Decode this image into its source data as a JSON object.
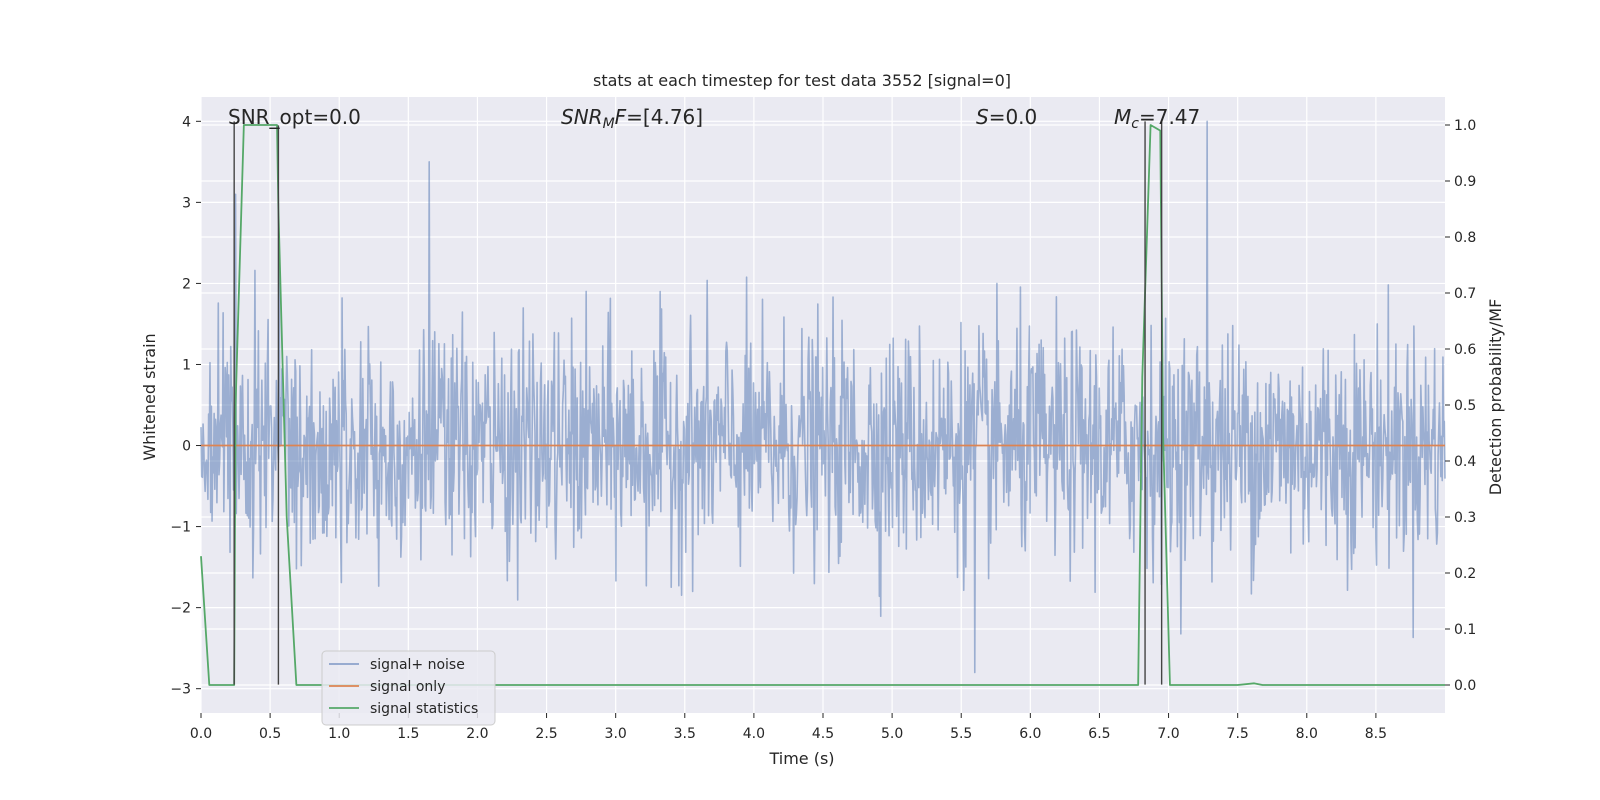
{
  "chart_data": {
    "type": "line",
    "title": "stats at each timestep for test data 3552 [signal=0]",
    "xlabel": "Time (s)",
    "ylabel": "Whitened strain",
    "ylabel_right": "Detection probability/MF",
    "xlim": [
      0.0,
      9.0
    ],
    "ylim": [
      -3.3,
      4.3
    ],
    "ylim_right": [
      -0.05,
      1.05
    ],
    "xticks": [
      "0.0",
      "0.5",
      "1.0",
      "1.5",
      "2.0",
      "2.5",
      "3.0",
      "3.5",
      "4.0",
      "4.5",
      "5.0",
      "5.5",
      "6.0",
      "6.5",
      "7.0",
      "7.5",
      "8.0",
      "8.5"
    ],
    "xtick_values": [
      0.0,
      0.5,
      1.0,
      1.5,
      2.0,
      2.5,
      3.0,
      3.5,
      4.0,
      4.5,
      5.0,
      5.5,
      6.0,
      6.5,
      7.0,
      7.5,
      8.0,
      8.5
    ],
    "yticks": [
      "−3",
      "−2",
      "−1",
      "0",
      "1",
      "2",
      "3",
      "4"
    ],
    "ytick_values": [
      -3,
      -2,
      -1,
      0,
      1,
      2,
      3,
      4
    ],
    "yticks_right": [
      "0.0",
      "0.1",
      "0.2",
      "0.3",
      "0.4",
      "0.5",
      "0.6",
      "0.7",
      "0.8",
      "0.9",
      "1.0"
    ],
    "ytick_right_values": [
      0.0,
      0.1,
      0.2,
      0.3,
      0.4,
      0.5,
      0.6,
      0.7,
      0.8,
      0.9,
      1.0
    ],
    "grid": true,
    "legend_position": "lower-left",
    "series": [
      {
        "name": "signal+ noise",
        "color": "#4c72b0",
        "axis": "left",
        "kind": "noise",
        "n": 1800,
        "sigma": 0.7,
        "seed": 3552
      },
      {
        "name": "signal only",
        "color": "#dd8452",
        "axis": "left",
        "x": [
          0.0,
          9.0
        ],
        "y": [
          0.0,
          0.0
        ]
      },
      {
        "name": "signal statistics",
        "color": "#55a868",
        "axis": "right",
        "x": [
          0.0,
          0.06,
          0.24,
          0.25,
          0.31,
          0.55,
          0.56,
          0.62,
          0.69,
          6.78,
          6.81,
          6.87,
          6.94,
          6.96,
          7.01,
          7.5,
          7.62,
          7.68,
          9.0
        ],
        "y": [
          0.23,
          0.0,
          0.0,
          0.5,
          1.0,
          1.0,
          0.85,
          0.3,
          0.0,
          0.0,
          0.55,
          1.0,
          0.99,
          0.45,
          0.0,
          0.0,
          0.003,
          0.0,
          0.0
        ]
      }
    ],
    "markers": {
      "color": "#444444",
      "lines": [
        {
          "x": 0.24,
          "y0": -2.95,
          "y1": 4.0
        },
        {
          "x": 0.56,
          "y0": -2.95,
          "y1": 3.95
        },
        {
          "x": 6.83,
          "y0": -2.95,
          "y1": 4.0
        },
        {
          "x": 6.95,
          "y0": -2.95,
          "y1": 4.0
        }
      ]
    },
    "annotations": [
      {
        "key": "snr_opt",
        "text": "SNR_opt=0.0"
      },
      {
        "key": "snr_mf",
        "text": "SNR_MF=[4.76]"
      },
      {
        "key": "s",
        "text": "S=0.0"
      },
      {
        "key": "mc",
        "text": "M_c=7.47"
      }
    ],
    "colors": {
      "background": "#eaeaf2",
      "grid": "#ffffff",
      "text": "#262626"
    }
  }
}
